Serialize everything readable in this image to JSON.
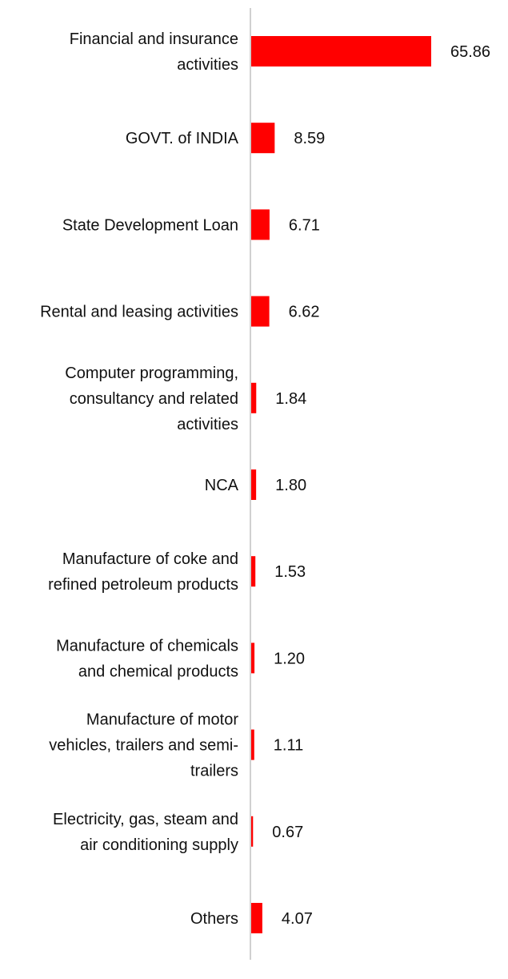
{
  "chart_data": {
    "type": "bar",
    "orientation": "horizontal",
    "categories": [
      "Financial and insurance activities",
      "GOVT. of INDIA",
      "State Development Loan",
      "Rental and leasing activities",
      "Computer programming, consultancy and related activities",
      "NCA",
      "Manufacture of coke and refined petroleum products",
      "Manufacture of chemicals and chemical products",
      "Manufacture of motor vehicles, trailers and semi-trailers",
      "Electricity, gas, steam and air conditioning supply",
      "Others"
    ],
    "category_lines": [
      [
        "Financial and insurance",
        "activities"
      ],
      [
        "GOVT. of INDIA"
      ],
      [
        "State Development Loan"
      ],
      [
        "Rental and leasing activities"
      ],
      [
        "Computer programming,",
        "consultancy and related",
        "activities"
      ],
      [
        "NCA"
      ],
      [
        "Manufacture of coke and",
        "refined petroleum products"
      ],
      [
        "Manufacture of chemicals",
        "and chemical products"
      ],
      [
        "Manufacture of motor",
        "vehicles, trailers and semi-",
        "trailers"
      ],
      [
        "Electricity, gas, steam and",
        "air conditioning supply"
      ],
      [
        "Others"
      ]
    ],
    "values": [
      65.86,
      8.59,
      6.71,
      6.62,
      1.84,
      1.8,
      1.53,
      1.2,
      1.11,
      0.67,
      4.07
    ],
    "value_labels": [
      "65.86",
      "8.59",
      "6.71",
      "6.62",
      "1.84",
      "1.80",
      "1.53",
      "1.20",
      "1.11",
      "0.67",
      "4.07"
    ],
    "title": "",
    "xlabel": "",
    "ylabel": "",
    "grid": false,
    "legend": "none",
    "colors": {
      "bar": "#ff0000",
      "axis": "#d0d0d0",
      "text": "#111111"
    }
  }
}
